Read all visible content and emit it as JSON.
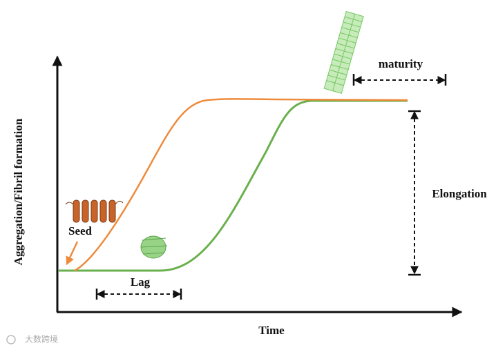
{
  "diagram": {
    "y_axis_label": "Aggregation/Fibril formation",
    "x_axis_label": "Time",
    "labels": {
      "seed": "Seed",
      "lag": "Lag",
      "elongation": "Elongation",
      "maturity": "maturity"
    },
    "watermark": "大数跨境"
  }
}
